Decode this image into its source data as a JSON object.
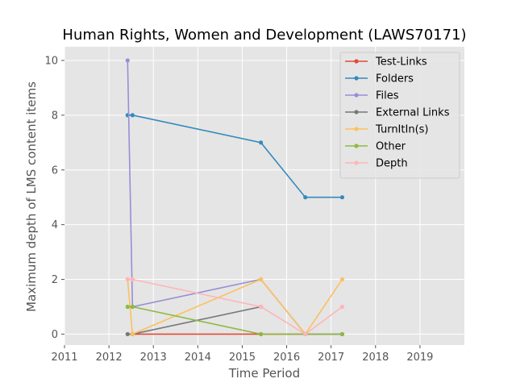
{
  "chart_data": {
    "type": "line",
    "title": "Human Rights, Women and Development (LAWS70171)",
    "xlabel": "Time Period",
    "ylabel": "Maximum depth of LMS content items",
    "xlim": [
      2011,
      2020
    ],
    "ylim": [
      -0.4,
      10.5
    ],
    "xticks": [
      "2011",
      "2012",
      "2013",
      "2014",
      "2015",
      "2016",
      "2017",
      "2018",
      "2019"
    ],
    "yticks": [
      "0",
      "2",
      "4",
      "6",
      "8",
      "10"
    ],
    "grid": true,
    "legend_position": "upper-right",
    "background": "#e5e5e5",
    "series": [
      {
        "name": "Test-Links",
        "color": "#e24a33",
        "x": [
          2012.53,
          2015.42,
          2016.42,
          2017.25
        ],
        "y": [
          0,
          0,
          0,
          0
        ]
      },
      {
        "name": "Folders",
        "color": "#348abd",
        "x": [
          2012.42,
          2012.53,
          2015.42,
          2016.42,
          2017.25
        ],
        "y": [
          8,
          8,
          7,
          5,
          5
        ]
      },
      {
        "name": "Files",
        "color": "#988ed5",
        "x": [
          2012.42,
          2012.53,
          2015.42,
          2016.42,
          2017.25
        ],
        "y": [
          10,
          1,
          2,
          0,
          0
        ]
      },
      {
        "name": "External Links",
        "color": "#777777",
        "x": [
          2012.42,
          2012.53,
          2015.42
        ],
        "y": [
          0,
          0,
          1
        ]
      },
      {
        "name": "TurnItIn(s)",
        "color": "#fbc15e",
        "x": [
          2012.42,
          2012.53,
          2015.42,
          2016.42,
          2017.25
        ],
        "y": [
          2,
          0,
          2,
          0,
          2
        ]
      },
      {
        "name": "Other",
        "color": "#8eba42",
        "x": [
          2012.42,
          2012.53,
          2015.42,
          2016.42,
          2017.25
        ],
        "y": [
          1,
          1,
          0,
          0,
          0
        ]
      },
      {
        "name": "Depth",
        "color": "#ffb5b8",
        "x": [
          2012.42,
          2012.53,
          2015.42,
          2016.42,
          2017.25
        ],
        "y": [
          2,
          2,
          1,
          0,
          1
        ]
      }
    ]
  }
}
